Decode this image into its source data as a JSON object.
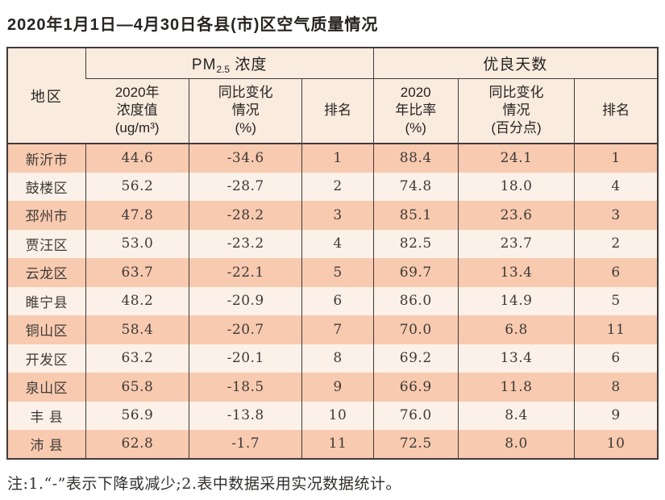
{
  "title": "2020年1月1日—4月30日各县(市)区空气质量情况",
  "colors": {
    "row_dark": "#f8cab0",
    "row_light": "#fcf1e8",
    "header_bg": "#faebdf",
    "border": "#403b38",
    "text": "#3e3a36"
  },
  "table": {
    "region_header": "地区",
    "pm25_group": {
      "prefix": "PM",
      "sub": "2.5",
      "suffix": " 浓度"
    },
    "good_days_group": "优良天数",
    "subheaders": {
      "pm_value": "2020年\n浓度值\n(ug/m³)",
      "pm_change": "同比变化\n情况\n(%)",
      "pm_rank": "排名",
      "good_ratio": "2020\n年比率\n(%)",
      "good_change": "同比变化\n情况\n(百分点)",
      "good_rank": "排名"
    },
    "rows": [
      {
        "region": "新沂市",
        "pm_value": "44.6",
        "pm_change": "-34.6",
        "pm_rank": "1",
        "good_ratio": "88.4",
        "good_change": "24.1",
        "good_rank": "1"
      },
      {
        "region": "鼓楼区",
        "pm_value": "56.2",
        "pm_change": "-28.7",
        "pm_rank": "2",
        "good_ratio": "74.8",
        "good_change": "18.0",
        "good_rank": "4"
      },
      {
        "region": "邳州市",
        "pm_value": "47.8",
        "pm_change": "-28.2",
        "pm_rank": "3",
        "good_ratio": "85.1",
        "good_change": "23.6",
        "good_rank": "3"
      },
      {
        "region": "贾汪区",
        "pm_value": "53.0",
        "pm_change": "-23.2",
        "pm_rank": "4",
        "good_ratio": "82.5",
        "good_change": "23.7",
        "good_rank": "2"
      },
      {
        "region": "云龙区",
        "pm_value": "63.7",
        "pm_change": "-22.1",
        "pm_rank": "5",
        "good_ratio": "69.7",
        "good_change": "13.4",
        "good_rank": "6"
      },
      {
        "region": "睢宁县",
        "pm_value": "48.2",
        "pm_change": "-20.9",
        "pm_rank": "6",
        "good_ratio": "86.0",
        "good_change": "14.9",
        "good_rank": "5"
      },
      {
        "region": "铜山区",
        "pm_value": "58.4",
        "pm_change": "-20.7",
        "pm_rank": "7",
        "good_ratio": "70.0",
        "good_change": "6.8",
        "good_rank": "11"
      },
      {
        "region": "开发区",
        "pm_value": "63.2",
        "pm_change": "-20.1",
        "pm_rank": "8",
        "good_ratio": "69.2",
        "good_change": "13.4",
        "good_rank": "6"
      },
      {
        "region": "泉山区",
        "pm_value": "65.8",
        "pm_change": "-18.5",
        "pm_rank": "9",
        "good_ratio": "66.9",
        "good_change": "11.8",
        "good_rank": "8"
      },
      {
        "region": "丰 县",
        "pm_value": "56.9",
        "pm_change": "-13.8",
        "pm_rank": "10",
        "good_ratio": "76.0",
        "good_change": "8.4",
        "good_rank": "9"
      },
      {
        "region": "沛 县",
        "pm_value": "62.8",
        "pm_change": "-1.7",
        "pm_rank": "11",
        "good_ratio": "72.5",
        "good_change": "8.0",
        "good_rank": "10"
      }
    ]
  },
  "footnote": "注:1.“-”表示下降或减少;2.表中数据采用实况数据统计。"
}
